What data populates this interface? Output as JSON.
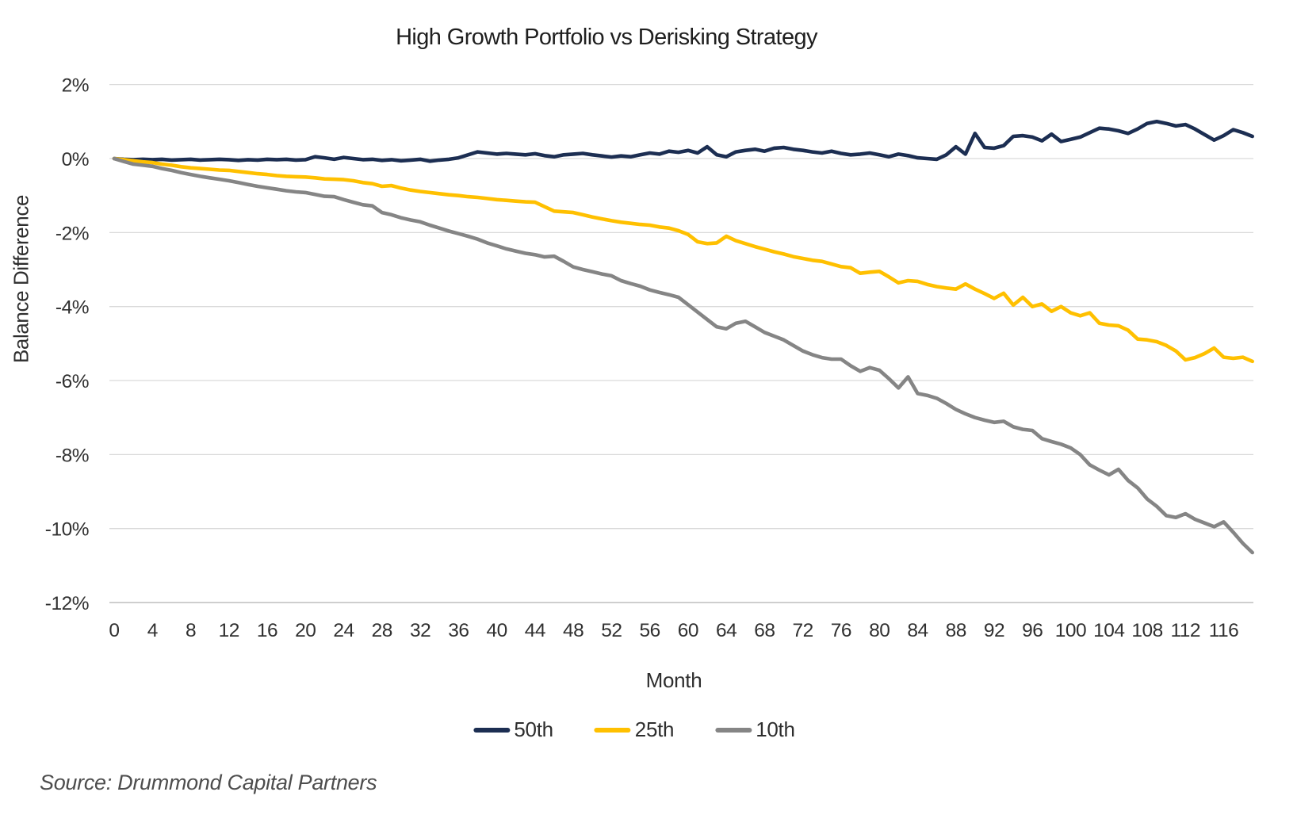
{
  "footer": {
    "source": "Source: Drummond Capital Partners"
  },
  "chart_data": {
    "type": "line",
    "title": "High Growth Portfolio vs Derisking Strategy",
    "xlabel": "Month",
    "ylabel": "Balance Difference",
    "xlim": [
      0,
      119
    ],
    "ylim": [
      -12,
      2
    ],
    "grid": "horizontal",
    "legend_position": "bottom",
    "x_ticks": [
      "0",
      "4",
      "8",
      "12",
      "16",
      "20",
      "24",
      "28",
      "32",
      "36",
      "40",
      "44",
      "48",
      "52",
      "56",
      "60",
      "64",
      "68",
      "72",
      "76",
      "80",
      "84",
      "88",
      "92",
      "96",
      "100",
      "104",
      "108",
      "112",
      "116"
    ],
    "y_ticks": [
      {
        "label": "2%",
        "value": 2
      },
      {
        "label": "0%",
        "value": 0
      },
      {
        "label": "-2%",
        "value": -2
      },
      {
        "label": "-4%",
        "value": -4
      },
      {
        "label": "-6%",
        "value": -6
      },
      {
        "label": "-8%",
        "value": -8
      },
      {
        "label": "-10%",
        "value": -10
      },
      {
        "label": "-12%",
        "value": -12
      }
    ],
    "x_months": "0..119 monthly",
    "colors": {
      "grid": "#d9d9d9",
      "axis": "#c3c3c3",
      "text": "#303030"
    },
    "series": [
      {
        "name": "50th",
        "color": "#1c2e52",
        "values": [
          0.0,
          -0.02,
          -0.03,
          -0.02,
          -0.03,
          -0.02,
          -0.04,
          -0.03,
          -0.02,
          -0.04,
          -0.03,
          -0.02,
          -0.03,
          -0.05,
          -0.03,
          -0.04,
          -0.02,
          -0.03,
          -0.02,
          -0.04,
          -0.03,
          0.05,
          0.02,
          -0.02,
          0.03,
          0.0,
          -0.03,
          -0.02,
          -0.05,
          -0.03,
          -0.06,
          -0.04,
          -0.02,
          -0.07,
          -0.04,
          -0.02,
          0.02,
          0.1,
          0.18,
          0.15,
          0.12,
          0.14,
          0.12,
          0.1,
          0.13,
          0.08,
          0.05,
          0.1,
          0.12,
          0.14,
          0.1,
          0.07,
          0.04,
          0.07,
          0.05,
          0.1,
          0.15,
          0.12,
          0.2,
          0.17,
          0.22,
          0.15,
          0.32,
          0.1,
          0.05,
          0.18,
          0.22,
          0.25,
          0.2,
          0.28,
          0.3,
          0.25,
          0.22,
          0.18,
          0.15,
          0.2,
          0.14,
          0.1,
          0.12,
          0.15,
          0.1,
          0.05,
          0.12,
          0.08,
          0.02,
          0.0,
          -0.02,
          0.1,
          0.32,
          0.12,
          0.68,
          0.3,
          0.28,
          0.35,
          0.6,
          0.62,
          0.58,
          0.48,
          0.66,
          0.46,
          0.52,
          0.58,
          0.7,
          0.82,
          0.8,
          0.75,
          0.68,
          0.8,
          0.95,
          1.0,
          0.95,
          0.88,
          0.92,
          0.8,
          0.65,
          0.5,
          0.62,
          0.78,
          0.7,
          0.6
        ]
      },
      {
        "name": "25th",
        "color": "#ffc000",
        "values": [
          0.0,
          -0.03,
          -0.06,
          -0.09,
          -0.11,
          -0.15,
          -0.18,
          -0.22,
          -0.25,
          -0.27,
          -0.29,
          -0.31,
          -0.32,
          -0.35,
          -0.38,
          -0.41,
          -0.43,
          -0.46,
          -0.48,
          -0.49,
          -0.5,
          -0.52,
          -0.55,
          -0.56,
          -0.57,
          -0.6,
          -0.65,
          -0.68,
          -0.75,
          -0.73,
          -0.8,
          -0.85,
          -0.89,
          -0.92,
          -0.95,
          -0.98,
          -1.0,
          -1.03,
          -1.05,
          -1.08,
          -1.11,
          -1.13,
          -1.15,
          -1.17,
          -1.18,
          -1.3,
          -1.42,
          -1.44,
          -1.46,
          -1.52,
          -1.58,
          -1.63,
          -1.68,
          -1.72,
          -1.75,
          -1.78,
          -1.8,
          -1.85,
          -1.88,
          -1.95,
          -2.05,
          -2.25,
          -2.3,
          -2.28,
          -2.1,
          -2.22,
          -2.3,
          -2.38,
          -2.45,
          -2.52,
          -2.58,
          -2.65,
          -2.7,
          -2.75,
          -2.78,
          -2.85,
          -2.92,
          -2.95,
          -3.1,
          -3.07,
          -3.05,
          -3.2,
          -3.36,
          -3.3,
          -3.32,
          -3.4,
          -3.46,
          -3.5,
          -3.53,
          -3.39,
          -3.53,
          -3.65,
          -3.78,
          -3.64,
          -3.96,
          -3.75,
          -4.0,
          -3.93,
          -4.13,
          -4.0,
          -4.17,
          -4.25,
          -4.17,
          -4.45,
          -4.5,
          -4.52,
          -4.64,
          -4.88,
          -4.9,
          -4.95,
          -5.05,
          -5.2,
          -5.44,
          -5.38,
          -5.27,
          -5.12,
          -5.37,
          -5.4,
          -5.37,
          -5.48
        ]
      },
      {
        "name": "10th",
        "color": "#858585",
        "values": [
          0.0,
          -0.08,
          -0.15,
          -0.18,
          -0.21,
          -0.27,
          -0.32,
          -0.38,
          -0.43,
          -0.48,
          -0.52,
          -0.56,
          -0.6,
          -0.65,
          -0.7,
          -0.75,
          -0.79,
          -0.83,
          -0.87,
          -0.9,
          -0.92,
          -0.97,
          -1.02,
          -1.03,
          -1.11,
          -1.18,
          -1.25,
          -1.28,
          -1.46,
          -1.52,
          -1.6,
          -1.66,
          -1.71,
          -1.8,
          -1.88,
          -1.96,
          -2.03,
          -2.1,
          -2.18,
          -2.28,
          -2.36,
          -2.44,
          -2.5,
          -2.56,
          -2.6,
          -2.66,
          -2.64,
          -2.78,
          -2.93,
          -3.0,
          -3.06,
          -3.12,
          -3.17,
          -3.3,
          -3.38,
          -3.45,
          -3.55,
          -3.62,
          -3.68,
          -3.75,
          -3.95,
          -4.15,
          -4.35,
          -4.55,
          -4.6,
          -4.45,
          -4.4,
          -4.55,
          -4.7,
          -4.8,
          -4.9,
          -5.05,
          -5.2,
          -5.3,
          -5.38,
          -5.42,
          -5.42,
          -5.6,
          -5.75,
          -5.65,
          -5.72,
          -5.95,
          -6.2,
          -5.9,
          -6.35,
          -6.4,
          -6.48,
          -6.62,
          -6.78,
          -6.9,
          -7.0,
          -7.07,
          -7.13,
          -7.1,
          -7.25,
          -7.32,
          -7.35,
          -7.57,
          -7.65,
          -7.72,
          -7.82,
          -8.0,
          -8.28,
          -8.42,
          -8.55,
          -8.4,
          -8.7,
          -8.9,
          -9.2,
          -9.4,
          -9.65,
          -9.7,
          -9.6,
          -9.75,
          -9.85,
          -9.95,
          -9.82,
          -10.1,
          -10.4,
          -10.65
        ]
      }
    ]
  }
}
